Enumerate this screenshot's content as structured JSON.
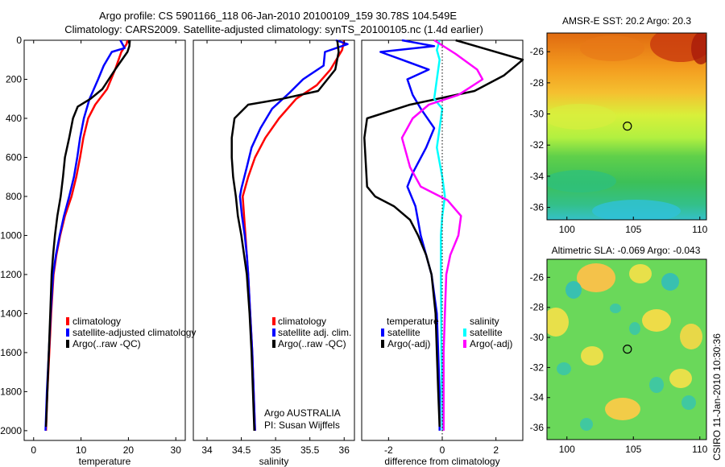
{
  "header": {
    "line1": "Argo profile: CS 5901166_118 06-Jan-2010 20100109_159 30.78S 104.549E",
    "line2": "Climatology: CARS2009. Satellite-adjusted climatology: synTS_20100105.nc (1.4d earlier)"
  },
  "colors": {
    "climatology": "#ff0000",
    "satellite": "#0000ff",
    "argo": "#000000",
    "sal_satellite": "#00ffff",
    "sal_argo": "#ff00ff"
  },
  "chart_data": [
    {
      "type": "line",
      "id": "temperature",
      "xlabel": "temperature",
      "ylabel": "",
      "xlim": [
        -2,
        32
      ],
      "ylim": [
        2050,
        0
      ],
      "y_inverted": true,
      "xticks": [
        "0",
        "10",
        "20",
        "30"
      ],
      "xtick_values": [
        0,
        10,
        20,
        30
      ],
      "yticks": [
        "0",
        "200",
        "400",
        "600",
        "800",
        "1000",
        "1200",
        "1400",
        "1600",
        "1800",
        "2000"
      ],
      "ytick_values": [
        0,
        200,
        400,
        600,
        800,
        1000,
        1200,
        1400,
        1600,
        1800,
        2000
      ],
      "legend": [
        "climatology",
        "satellite-adjusted climatology",
        "Argo(..raw -QC)"
      ],
      "series": [
        {
          "name": "climatology",
          "color": "#ff0000",
          "points": [
            [
              19.8,
              0
            ],
            [
              19.6,
              20
            ],
            [
              18.5,
              60
            ],
            [
              17.2,
              150
            ],
            [
              15.5,
              250
            ],
            [
              13,
              330
            ],
            [
              11.5,
              400
            ],
            [
              10.5,
              500
            ],
            [
              9.8,
              600
            ],
            [
              9,
              700
            ],
            [
              8,
              800
            ],
            [
              6.6,
              900
            ],
            [
              5.6,
              1000
            ],
            [
              4.8,
              1100
            ],
            [
              4.2,
              1200
            ],
            [
              3.7,
              1400
            ],
            [
              3.3,
              1600
            ],
            [
              2.9,
              1800
            ],
            [
              2.6,
              2000
            ]
          ]
        },
        {
          "name": "satellite",
          "color": "#0000ff",
          "points": [
            [
              18.3,
              0
            ],
            [
              19.2,
              40
            ],
            [
              16.5,
              60
            ],
            [
              14.8,
              130
            ],
            [
              13.6,
              200
            ],
            [
              11.8,
              300
            ],
            [
              10.6,
              400
            ],
            [
              9.8,
              500
            ],
            [
              9.2,
              600
            ],
            [
              8.5,
              700
            ],
            [
              7.5,
              800
            ],
            [
              6.4,
              900
            ],
            [
              5.5,
              1000
            ],
            [
              4.7,
              1100
            ],
            [
              4.1,
              1200
            ],
            [
              3.6,
              1400
            ],
            [
              3.2,
              1600
            ],
            [
              2.8,
              1800
            ],
            [
              2.5,
              2000
            ]
          ]
        },
        {
          "name": "argo",
          "color": "#000000",
          "points": [
            [
              20.3,
              0
            ],
            [
              20.2,
              30
            ],
            [
              19.8,
              60
            ],
            [
              17.2,
              150
            ],
            [
              14.5,
              250
            ],
            [
              12,
              300
            ],
            [
              9.3,
              340
            ],
            [
              8.3,
              400
            ],
            [
              7.5,
              500
            ],
            [
              6.6,
              600
            ],
            [
              6.2,
              700
            ],
            [
              5.7,
              800
            ],
            [
              5,
              900
            ],
            [
              4.5,
              1000
            ],
            [
              4.1,
              1100
            ],
            [
              3.8,
              1200
            ],
            [
              3.5,
              1400
            ],
            [
              3.2,
              1600
            ],
            [
              2.9,
              1800
            ],
            [
              2.6,
              1980
            ]
          ]
        }
      ]
    },
    {
      "type": "line",
      "id": "salinity",
      "xlabel": "salinity",
      "ylabel": "",
      "xlim": [
        33.8,
        36.15
      ],
      "ylim": [
        2050,
        0
      ],
      "y_inverted": true,
      "xticks": [
        "34",
        "34.5",
        "35",
        "35.5",
        "36"
      ],
      "xtick_values": [
        34,
        34.5,
        35,
        35.5,
        36
      ],
      "legend": [
        "climatology",
        "satellite adj. clim.",
        "Argo(..raw -QC)"
      ],
      "annotation": [
        "Argo AUSTRALIA",
        "PI: Susan Wijffels"
      ],
      "series": [
        {
          "name": "climatology",
          "color": "#ff0000",
          "points": [
            [
              36,
              0
            ],
            [
              35.97,
              50
            ],
            [
              35.8,
              150
            ],
            [
              35.6,
              230
            ],
            [
              35.3,
              300
            ],
            [
              35.05,
              400
            ],
            [
              34.85,
              500
            ],
            [
              34.7,
              600
            ],
            [
              34.6,
              700
            ],
            [
              34.52,
              800
            ],
            [
              34.54,
              900
            ],
            [
              34.56,
              1000
            ],
            [
              34.58,
              1100
            ],
            [
              34.6,
              1200
            ],
            [
              34.63,
              1400
            ],
            [
              34.66,
              1600
            ],
            [
              34.68,
              1800
            ],
            [
              34.7,
              2000
            ]
          ]
        },
        {
          "name": "satellite",
          "color": "#0000ff",
          "points": [
            [
              35.88,
              0
            ],
            [
              36.05,
              20
            ],
            [
              35.72,
              60
            ],
            [
              35.7,
              130
            ],
            [
              35.4,
              200
            ],
            [
              35.2,
              270
            ],
            [
              34.95,
              350
            ],
            [
              34.78,
              450
            ],
            [
              34.65,
              550
            ],
            [
              34.58,
              650
            ],
            [
              34.5,
              760
            ],
            [
              34.48,
              800
            ],
            [
              34.51,
              900
            ],
            [
              34.55,
              1000
            ],
            [
              34.58,
              1100
            ],
            [
              34.6,
              1200
            ],
            [
              34.63,
              1400
            ],
            [
              34.66,
              1600
            ],
            [
              34.68,
              1800
            ],
            [
              34.7,
              2000
            ]
          ]
        },
        {
          "name": "argo",
          "color": "#000000",
          "points": [
            [
              35.9,
              0
            ],
            [
              35.92,
              60
            ],
            [
              35.87,
              150
            ],
            [
              35.62,
              260
            ],
            [
              35.1,
              300
            ],
            [
              34.6,
              330
            ],
            [
              34.4,
              400
            ],
            [
              34.36,
              500
            ],
            [
              34.36,
              600
            ],
            [
              34.38,
              700
            ],
            [
              34.42,
              800
            ],
            [
              34.45,
              900
            ],
            [
              34.5,
              1000
            ],
            [
              34.54,
              1100
            ],
            [
              34.58,
              1200
            ],
            [
              34.62,
              1400
            ],
            [
              34.65,
              1600
            ],
            [
              34.67,
              1800
            ],
            [
              34.69,
              2000
            ]
          ]
        }
      ]
    },
    {
      "type": "line",
      "id": "difference",
      "xlabel": "difference from climatology",
      "ylabel": "",
      "xlim": [
        -3,
        3
      ],
      "ylim": [
        2050,
        0
      ],
      "y_inverted": true,
      "xticks": [
        "-2",
        "0",
        "2"
      ],
      "xtick_values": [
        -2,
        0,
        2
      ],
      "legend_temperature": {
        "title": "temperature",
        "items": [
          "satellite",
          "Argo(-adj)"
        ]
      },
      "legend_salinity": {
        "title": "salinity",
        "items": [
          "satellite",
          "Argo(-adj)"
        ]
      },
      "series": [
        {
          "name": "temperature satellite",
          "color": "#0000ff",
          "points": [
            [
              -1.5,
              0
            ],
            [
              -0.3,
              30
            ],
            [
              -2.3,
              60
            ],
            [
              -1.5,
              100
            ],
            [
              -0.5,
              150
            ],
            [
              -1.3,
              200
            ],
            [
              -1.1,
              280
            ],
            [
              -0.8,
              350
            ],
            [
              -0.3,
              450
            ],
            [
              -0.6,
              550
            ],
            [
              -1.1,
              680
            ],
            [
              -1.3,
              750
            ],
            [
              -1.0,
              850
            ],
            [
              -0.8,
              1000
            ],
            [
              -0.6,
              1100
            ],
            [
              -0.4,
              1200
            ],
            [
              -0.2,
              1400
            ],
            [
              -0.15,
              1600
            ],
            [
              -0.1,
              1800
            ],
            [
              -0.1,
              2000
            ]
          ]
        },
        {
          "name": "temperature argo",
          "color": "#000000",
          "points": [
            [
              0.5,
              0
            ],
            [
              1.5,
              40
            ],
            [
              3,
              100
            ],
            [
              2.3,
              180
            ],
            [
              1.2,
              260
            ],
            [
              -1.2,
              330
            ],
            [
              -2.8,
              400
            ],
            [
              -2.9,
              500
            ],
            [
              -2.8,
              750
            ],
            [
              -2.5,
              800
            ],
            [
              -1.8,
              850
            ],
            [
              -1.2,
              920
            ],
            [
              -0.9,
              1000
            ],
            [
              -0.6,
              1100
            ],
            [
              -0.4,
              1200
            ],
            [
              -0.25,
              1400
            ],
            [
              -0.2,
              1600
            ],
            [
              -0.15,
              1800
            ],
            [
              -0.1,
              1980
            ]
          ]
        },
        {
          "name": "salinity satellite",
          "color": "#00ffff",
          "points": [
            [
              -0.1,
              0
            ],
            [
              -0.2,
              50
            ],
            [
              -0.1,
              100
            ],
            [
              -0.2,
              200
            ],
            [
              -0.3,
              300
            ],
            [
              0,
              350
            ],
            [
              -0.1,
              450
            ],
            [
              -0.2,
              550
            ],
            [
              0,
              700
            ],
            [
              0.1,
              800
            ],
            [
              0,
              900
            ],
            [
              -0.05,
              1000
            ],
            [
              -0.05,
              1200
            ],
            [
              -0.03,
              1600
            ],
            [
              0,
              2000
            ]
          ]
        },
        {
          "name": "salinity argo",
          "color": "#ff00ff",
          "points": [
            [
              -0.3,
              0
            ],
            [
              0.5,
              70
            ],
            [
              1.3,
              150
            ],
            [
              1.5,
              200
            ],
            [
              0.6,
              280
            ],
            [
              -0.5,
              330
            ],
            [
              -1.1,
              400
            ],
            [
              -1.5,
              500
            ],
            [
              -1.2,
              650
            ],
            [
              -0.8,
              750
            ],
            [
              0.2,
              820
            ],
            [
              0.7,
              900
            ],
            [
              0.6,
              1000
            ],
            [
              0.3,
              1100
            ],
            [
              0.15,
              1200
            ],
            [
              0.1,
              1400
            ],
            [
              0.05,
              1600
            ],
            [
              0.05,
              1800
            ],
            [
              0.05,
              2000
            ]
          ]
        }
      ]
    },
    {
      "type": "heatmap",
      "id": "sst",
      "title": "AMSR-E SST: 20.2 Argo: 20.3",
      "xlim": [
        98.5,
        110.5
      ],
      "ylim": [
        -36.8,
        -24.8
      ],
      "xticks": [
        "100",
        "105",
        "110"
      ],
      "xtick_values": [
        100,
        105,
        110
      ],
      "yticks": [
        "-26",
        "-28",
        "-30",
        "-32",
        "-34",
        "-36"
      ],
      "ytick_values": [
        -26,
        -28,
        -30,
        -32,
        -34,
        -36
      ],
      "marker": [
        104.55,
        -30.78
      ]
    },
    {
      "type": "heatmap",
      "id": "sla",
      "title": "Altimetric SLA: -0.069 Argo: -0.043",
      "xlim": [
        98.5,
        110.5
      ],
      "ylim": [
        -36.8,
        -24.8
      ],
      "xticks": [
        "100",
        "105",
        "110"
      ],
      "xtick_values": [
        100,
        105,
        110
      ],
      "yticks": [
        "-26",
        "-28",
        "-30",
        "-32",
        "-34",
        "-36"
      ],
      "ytick_values": [
        -26,
        -28,
        -30,
        -32,
        -34,
        -36
      ],
      "marker": [
        104.55,
        -30.78
      ]
    }
  ],
  "footer": {
    "stamp": "CSIRO 11-Jan-2010 10:30:36"
  }
}
